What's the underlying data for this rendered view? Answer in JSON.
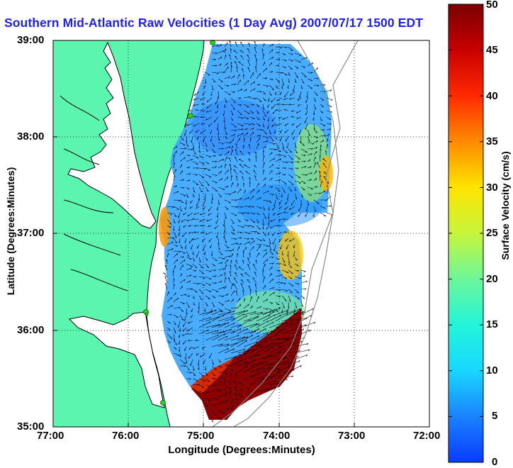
{
  "title": "Southern Mid-Atlantic Raw Velocities (1 Day Avg) 2007/07/17 1500 EDT",
  "axes": {
    "x_label": "Longitude (Degrees:Minutes)",
    "y_label": "Latitude (Degrees:Minutes)",
    "x_ticks": [
      "77:00",
      "76:00",
      "75:00",
      "74:00",
      "73:00",
      "72:00"
    ],
    "y_ticks": [
      "39:00",
      "38:00",
      "37:00",
      "36:00",
      "35:00"
    ]
  },
  "colorbar": {
    "label": "Surface Velocity (cm/s)",
    "min": 0,
    "max": 50,
    "ticks": [
      "50",
      "45",
      "40",
      "35",
      "30",
      "25",
      "20",
      "15",
      "10",
      "5",
      "0"
    ]
  },
  "colors": {
    "land": "#5cf5b0",
    "coast": "#000000",
    "title": "#1e1eff",
    "station": "#2ad02a"
  },
  "stations": 5
}
